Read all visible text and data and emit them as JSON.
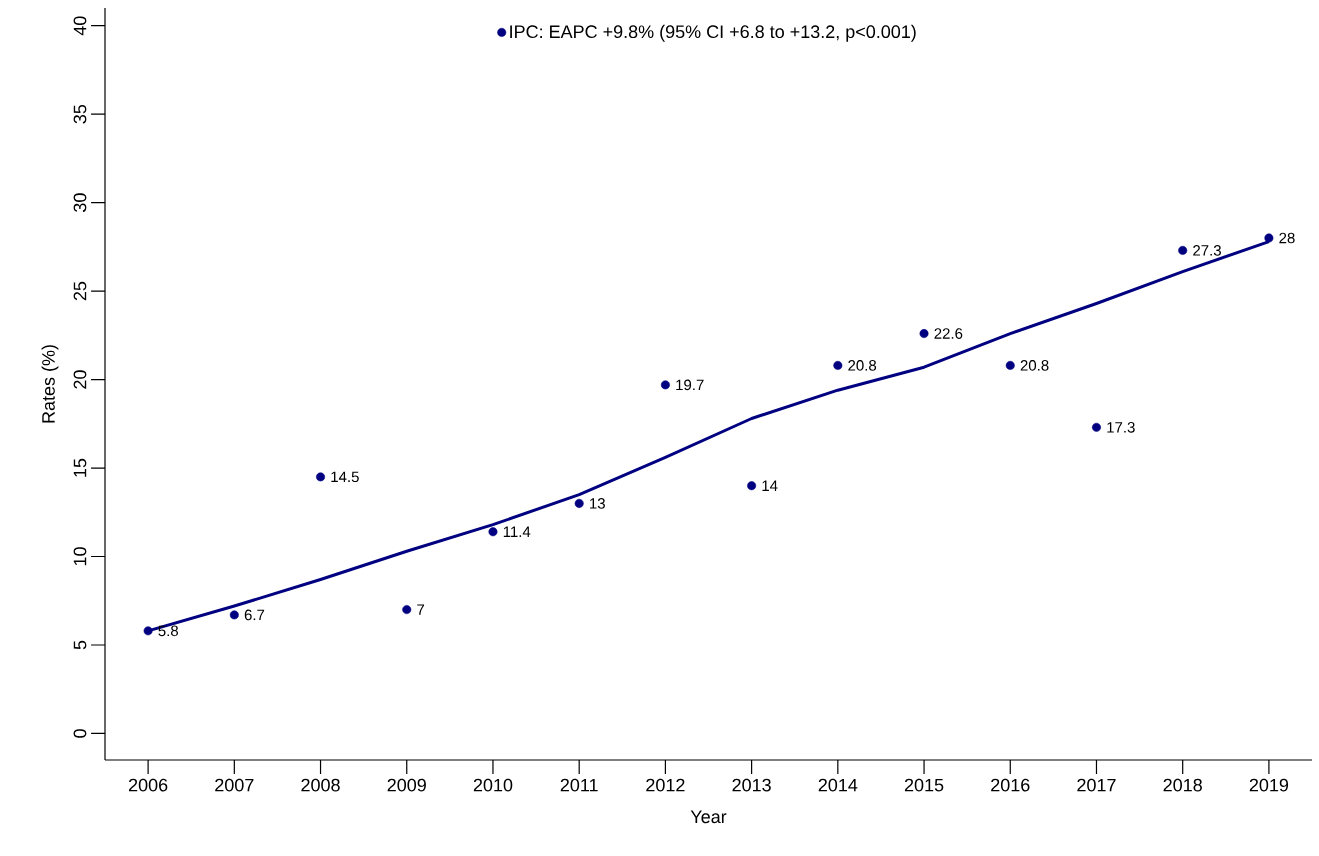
{
  "chart_data": {
    "type": "scatter",
    "xlabel": "Year",
    "ylabel": "Rates (%)",
    "x": [
      2006,
      2007,
      2008,
      2009,
      2010,
      2011,
      2012,
      2013,
      2014,
      2015,
      2016,
      2017,
      2018,
      2019
    ],
    "series": [
      {
        "name": "IPC: EAPC +9.8% (95% CI +6.8 to +13.2, p<0.001)",
        "marker": "circle",
        "color": "#000080",
        "values": [
          5.8,
          6.7,
          14.5,
          7,
          11.4,
          13,
          19.7,
          14,
          20.8,
          22.6,
          20.8,
          17.3,
          27.3,
          28
        ],
        "value_labels": [
          "5.8",
          "6.7",
          "14.5",
          "7",
          "11.4",
          "13",
          "19.7",
          "14",
          "20.8",
          "22.6",
          "20.8",
          "17.3",
          "27.3",
          "28"
        ]
      },
      {
        "type": "line",
        "color": "#000080",
        "values": [
          5.8,
          7.2,
          8.7,
          10.3,
          11.8,
          13.5,
          15.6,
          17.8,
          19.4,
          20.7,
          22.6,
          24.3,
          26.1,
          27.8
        ]
      }
    ],
    "xlim": [
      2005.5,
      2019.5
    ],
    "ylim": [
      -1.5,
      41
    ],
    "xticks": [
      2006,
      2007,
      2008,
      2009,
      2010,
      2011,
      2012,
      2013,
      2014,
      2015,
      2016,
      2017,
      2018,
      2019
    ],
    "yticks": [
      0,
      5,
      10,
      15,
      20,
      25,
      30,
      35,
      40
    ],
    "line_style": "solid",
    "grid": false,
    "legend": "top"
  }
}
